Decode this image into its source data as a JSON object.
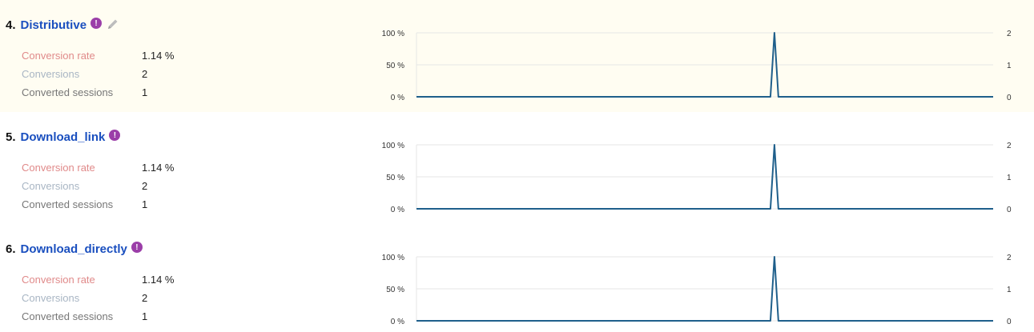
{
  "goals": [
    {
      "number": "4.",
      "name": "Distributive",
      "info_icon": "exclamation-icon",
      "has_edit": true,
      "edit_icon": "pencil-icon",
      "metrics": {
        "conversion_rate_label": "Conversion rate",
        "conversion_rate_value": "1.14 %",
        "conversions_label": "Conversions",
        "conversions_value": "2",
        "converted_sessions_label": "Converted sessions",
        "converted_sessions_value": "1"
      }
    },
    {
      "number": "5.",
      "name": "Download_link",
      "info_icon": "exclamation-icon",
      "has_edit": false,
      "metrics": {
        "conversion_rate_label": "Conversion rate",
        "conversion_rate_value": "1.14 %",
        "conversions_label": "Conversions",
        "conversions_value": "2",
        "converted_sessions_label": "Converted sessions",
        "converted_sessions_value": "1"
      }
    },
    {
      "number": "6.",
      "name": "Download_directly",
      "info_icon": "exclamation-icon",
      "has_edit": false,
      "metrics": {
        "conversion_rate_label": "Conversion rate",
        "conversion_rate_value": "1.14 %",
        "conversions_label": "Conversions",
        "conversions_value": "2",
        "converted_sessions_label": "Converted sessions",
        "converted_sessions_value": "1"
      }
    }
  ],
  "colors": {
    "link": "#1a4fbf",
    "info_badge": "#9b3ea8",
    "series_line": "#1f5f8b",
    "gridline": "#e6e6e6",
    "highlight_bg": "#fffdf2"
  },
  "chart_data": [
    {
      "type": "line",
      "y_left_ticks": [
        "100 %",
        "50 %",
        "0 %"
      ],
      "y_right_ticks": [
        "2",
        "1",
        "0"
      ],
      "ylim_left": [
        0,
        100
      ],
      "ylim_right": [
        0,
        2
      ],
      "series": [
        {
          "values": [
            0,
            0,
            0,
            0,
            0,
            0,
            0,
            0,
            0,
            0,
            0,
            0,
            0,
            0,
            0,
            0,
            0,
            0,
            0,
            0,
            0,
            0,
            0,
            0,
            0,
            0,
            0,
            0,
            0,
            0,
            0,
            0,
            0,
            0,
            0,
            0,
            0,
            0,
            0,
            0,
            0,
            0,
            0,
            0,
            0,
            0,
            0,
            0,
            0,
            0,
            0,
            0,
            0,
            0,
            0,
            0,
            0,
            0,
            0,
            0,
            0,
            0,
            0,
            0,
            0,
            0,
            0,
            0,
            0,
            0,
            0,
            0,
            0,
            0,
            0,
            0,
            0,
            0,
            0,
            0,
            0,
            0,
            0,
            0,
            0,
            0,
            0,
            0,
            0,
            0,
            2,
            0,
            0,
            0,
            0,
            0,
            0,
            0,
            0,
            0,
            0,
            0,
            0,
            0,
            0,
            0,
            0,
            0,
            0,
            0,
            0,
            0,
            0,
            0,
            0,
            0,
            0,
            0,
            0,
            0,
            0,
            0,
            0,
            0,
            0,
            0,
            0,
            0,
            0,
            0,
            0,
            0,
            0,
            0,
            0,
            0,
            0,
            0,
            0,
            0,
            0,
            0,
            0,
            0,
            0,
            0
          ]
        }
      ],
      "grid": true
    },
    {
      "type": "line",
      "y_left_ticks": [
        "100 %",
        "50 %",
        "0 %"
      ],
      "y_right_ticks": [
        "2",
        "1",
        "0"
      ],
      "ylim_left": [
        0,
        100
      ],
      "ylim_right": [
        0,
        2
      ],
      "series": [
        {
          "values": [
            0,
            0,
            0,
            0,
            0,
            0,
            0,
            0,
            0,
            0,
            0,
            0,
            0,
            0,
            0,
            0,
            0,
            0,
            0,
            0,
            0,
            0,
            0,
            0,
            0,
            0,
            0,
            0,
            0,
            0,
            0,
            0,
            0,
            0,
            0,
            0,
            0,
            0,
            0,
            0,
            0,
            0,
            0,
            0,
            0,
            0,
            0,
            0,
            0,
            0,
            0,
            0,
            0,
            0,
            0,
            0,
            0,
            0,
            0,
            0,
            0,
            0,
            0,
            0,
            0,
            0,
            0,
            0,
            0,
            0,
            0,
            0,
            0,
            0,
            0,
            0,
            0,
            0,
            0,
            0,
            0,
            0,
            0,
            0,
            0,
            0,
            0,
            0,
            0,
            0,
            2,
            0,
            0,
            0,
            0,
            0,
            0,
            0,
            0,
            0,
            0,
            0,
            0,
            0,
            0,
            0,
            0,
            0,
            0,
            0,
            0,
            0,
            0,
            0,
            0,
            0,
            0,
            0,
            0,
            0,
            0,
            0,
            0,
            0,
            0,
            0,
            0,
            0,
            0,
            0,
            0,
            0,
            0,
            0,
            0,
            0,
            0,
            0,
            0,
            0,
            0,
            0,
            0,
            0,
            0,
            0
          ]
        }
      ],
      "grid": true
    },
    {
      "type": "line",
      "y_left_ticks": [
        "100 %",
        "50 %",
        "0 %"
      ],
      "y_right_ticks": [
        "2",
        "1",
        "0"
      ],
      "ylim_left": [
        0,
        100
      ],
      "ylim_right": [
        0,
        2
      ],
      "series": [
        {
          "values": [
            0,
            0,
            0,
            0,
            0,
            0,
            0,
            0,
            0,
            0,
            0,
            0,
            0,
            0,
            0,
            0,
            0,
            0,
            0,
            0,
            0,
            0,
            0,
            0,
            0,
            0,
            0,
            0,
            0,
            0,
            0,
            0,
            0,
            0,
            0,
            0,
            0,
            0,
            0,
            0,
            0,
            0,
            0,
            0,
            0,
            0,
            0,
            0,
            0,
            0,
            0,
            0,
            0,
            0,
            0,
            0,
            0,
            0,
            0,
            0,
            0,
            0,
            0,
            0,
            0,
            0,
            0,
            0,
            0,
            0,
            0,
            0,
            0,
            0,
            0,
            0,
            0,
            0,
            0,
            0,
            0,
            0,
            0,
            0,
            0,
            0,
            0,
            0,
            0,
            0,
            2,
            0,
            0,
            0,
            0,
            0,
            0,
            0,
            0,
            0,
            0,
            0,
            0,
            0,
            0,
            0,
            0,
            0,
            0,
            0,
            0,
            0,
            0,
            0,
            0,
            0,
            0,
            0,
            0,
            0,
            0,
            0,
            0,
            0,
            0,
            0,
            0,
            0,
            0,
            0,
            0,
            0,
            0,
            0,
            0,
            0,
            0,
            0,
            0,
            0,
            0,
            0,
            0,
            0,
            0,
            0
          ]
        }
      ],
      "grid": true
    }
  ]
}
